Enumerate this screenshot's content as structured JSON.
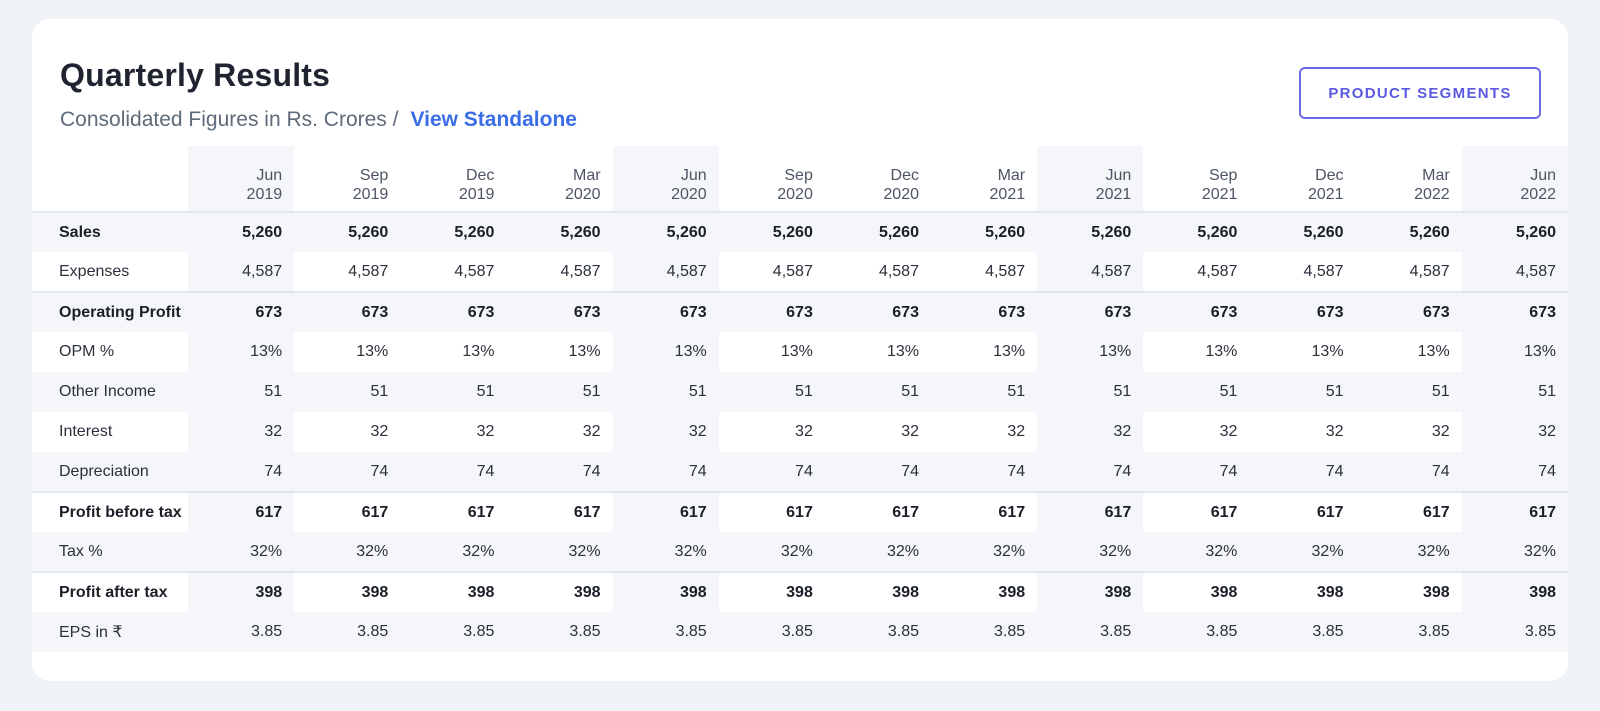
{
  "header": {
    "title": "Quarterly Results",
    "subtitle": "Consolidated Figures in Rs. Crores /",
    "view_link": "View Standalone",
    "segments_button": "PRODUCT SEGMENTS"
  },
  "table": {
    "columns": [
      {
        "month": "Jun",
        "year": "2019"
      },
      {
        "month": "Sep",
        "year": "2019"
      },
      {
        "month": "Dec",
        "year": "2019"
      },
      {
        "month": "Mar",
        "year": "2020"
      },
      {
        "month": "Jun",
        "year": "2020"
      },
      {
        "month": "Sep",
        "year": "2020"
      },
      {
        "month": "Dec",
        "year": "2020"
      },
      {
        "month": "Mar",
        "year": "2021"
      },
      {
        "month": "Jun",
        "year": "2021"
      },
      {
        "month": "Sep",
        "year": "2021"
      },
      {
        "month": "Dec",
        "year": "2021"
      },
      {
        "month": "Mar",
        "year": "2022"
      },
      {
        "month": "Jun",
        "year": "2022"
      }
    ],
    "rows": [
      {
        "label": "Sales",
        "bold": true,
        "values": [
          "5,260",
          "5,260",
          "5,260",
          "5,260",
          "5,260",
          "5,260",
          "5,260",
          "5,260",
          "5,260",
          "5,260",
          "5,260",
          "5,260",
          "5,260"
        ]
      },
      {
        "label": "Expenses",
        "bold": false,
        "values": [
          "4,587",
          "4,587",
          "4,587",
          "4,587",
          "4,587",
          "4,587",
          "4,587",
          "4,587",
          "4,587",
          "4,587",
          "4,587",
          "4,587",
          "4,587"
        ]
      },
      {
        "label": "Operating Profit",
        "bold": true,
        "values": [
          "673",
          "673",
          "673",
          "673",
          "673",
          "673",
          "673",
          "673",
          "673",
          "673",
          "673",
          "673",
          "673"
        ]
      },
      {
        "label": "OPM %",
        "bold": false,
        "values": [
          "13%",
          "13%",
          "13%",
          "13%",
          "13%",
          "13%",
          "13%",
          "13%",
          "13%",
          "13%",
          "13%",
          "13%",
          "13%"
        ]
      },
      {
        "label": "Other Income",
        "bold": false,
        "values": [
          "51",
          "51",
          "51",
          "51",
          "51",
          "51",
          "51",
          "51",
          "51",
          "51",
          "51",
          "51",
          "51"
        ]
      },
      {
        "label": "Interest",
        "bold": false,
        "values": [
          "32",
          "32",
          "32",
          "32",
          "32",
          "32",
          "32",
          "32",
          "32",
          "32",
          "32",
          "32",
          "32"
        ]
      },
      {
        "label": "Depreciation",
        "bold": false,
        "values": [
          "74",
          "74",
          "74",
          "74",
          "74",
          "74",
          "74",
          "74",
          "74",
          "74",
          "74",
          "74",
          "74"
        ]
      },
      {
        "label": "Profit before tax",
        "bold": true,
        "values": [
          "617",
          "617",
          "617",
          "617",
          "617",
          "617",
          "617",
          "617",
          "617",
          "617",
          "617",
          "617",
          "617"
        ]
      },
      {
        "label": "Tax %",
        "bold": false,
        "values": [
          "32%",
          "32%",
          "32%",
          "32%",
          "32%",
          "32%",
          "32%",
          "32%",
          "32%",
          "32%",
          "32%",
          "32%",
          "32%"
        ]
      },
      {
        "label": "Profit after tax",
        "bold": true,
        "values": [
          "398",
          "398",
          "398",
          "398",
          "398",
          "398",
          "398",
          "398",
          "398",
          "398",
          "398",
          "398",
          "398"
        ]
      },
      {
        "label": "EPS in ₹",
        "bold": false,
        "values": [
          "3.85",
          "3.85",
          "3.85",
          "3.85",
          "3.85",
          "3.85",
          "3.85",
          "3.85",
          "3.85",
          "3.85",
          "3.85",
          "3.85",
          "3.85"
        ]
      }
    ]
  },
  "colors": {
    "page_bg": "#eff2f7",
    "card_bg": "#ffffff",
    "link": "#3b6ee6",
    "accent_button": "#5b5ae0",
    "shaded_cell": "#f4f6fa"
  }
}
